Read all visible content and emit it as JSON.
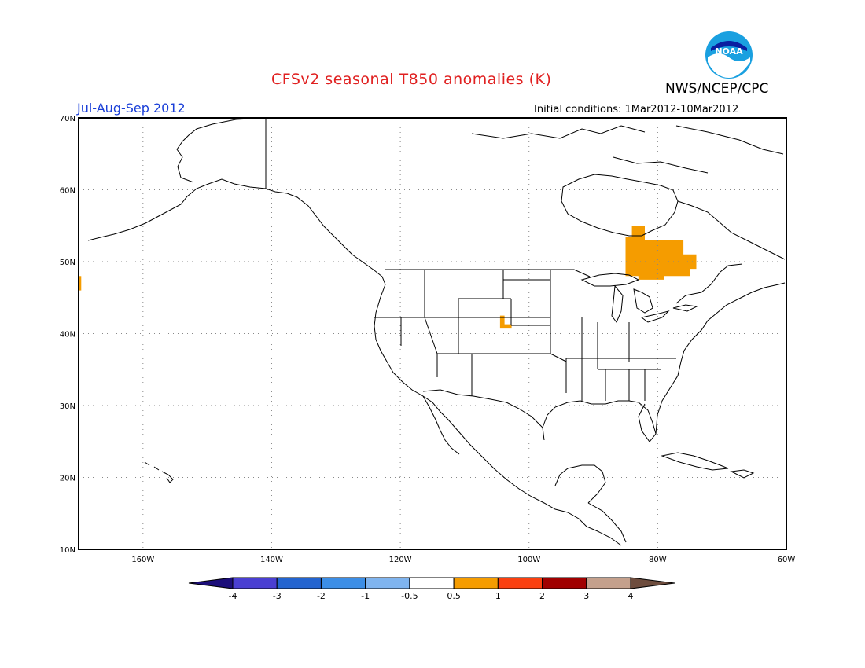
{
  "title": "CFSv2 seasonal T850 anomalies (K)",
  "agency": "NWS/NCEP/CPC",
  "logo_text": "NOAA",
  "season": "Jul-Aug-Sep 2012",
  "initial_conditions": "Initial conditions: 1Mar2012-10Mar2012",
  "map": {
    "lon_range": [
      -170,
      -60
    ],
    "lat_range": [
      10,
      70
    ],
    "lon_ticks": [
      {
        "lon": -160,
        "label": "160W"
      },
      {
        "lon": -140,
        "label": "140W"
      },
      {
        "lon": -120,
        "label": "120W"
      },
      {
        "lon": -100,
        "label": "100W"
      },
      {
        "lon": -80,
        "label": "80W"
      },
      {
        "lon": -60,
        "label": "60W"
      }
    ],
    "lat_ticks": [
      {
        "lat": 10,
        "label": "10N"
      },
      {
        "lat": 20,
        "label": "20N"
      },
      {
        "lat": 30,
        "label": "30N"
      },
      {
        "lat": 40,
        "label": "40N"
      },
      {
        "lat": 50,
        "label": "50N"
      },
      {
        "lat": 60,
        "label": "60N"
      },
      {
        "lat": 70,
        "label": "70N"
      }
    ],
    "grid": true,
    "anomaly_regions": [
      {
        "name": "quebec-ontario-warm",
        "category": "0.5 to 1",
        "lonlat": [
          [
            -84,
            55
          ],
          [
            -82,
            55
          ],
          [
            -82,
            53
          ],
          [
            -76,
            53
          ],
          [
            -76,
            51
          ],
          [
            -74,
            51
          ],
          [
            -74,
            49
          ],
          [
            -75,
            49
          ],
          [
            -75,
            48
          ],
          [
            -79,
            48
          ],
          [
            -79,
            47.5
          ],
          [
            -83,
            47.5
          ],
          [
            -83,
            48
          ],
          [
            -85,
            48
          ],
          [
            -85,
            53.5
          ],
          [
            -84,
            53.5
          ]
        ]
      },
      {
        "name": "colorado-warm",
        "category": "0.5 to 1",
        "lonlat": [
          [
            -104.5,
            42.5
          ],
          [
            -103.8,
            42.5
          ],
          [
            -103.8,
            41.3
          ],
          [
            -102.7,
            41.3
          ],
          [
            -102.7,
            40.7
          ],
          [
            -104.5,
            40.7
          ]
        ]
      },
      {
        "name": "dateline-edge-warm",
        "category": "0.5 to 1",
        "lonlat": [
          [
            -170,
            48
          ],
          [
            -169.6,
            48
          ],
          [
            -169.6,
            46
          ],
          [
            -170,
            46
          ]
        ]
      }
    ]
  },
  "colorbar": {
    "colors": [
      "#1c0e7a",
      "#4a3fd2",
      "#2364d0",
      "#3c8ee6",
      "#7fb4ef",
      "#ffffff",
      "#f59c00",
      "#fa4010",
      "#a00000",
      "#c4a08c",
      "#6e4d3e"
    ],
    "labels": [
      "-4",
      "-3",
      "-2",
      "-1",
      "-0.5",
      "0.5",
      "1",
      "2",
      "3",
      "4"
    ]
  }
}
